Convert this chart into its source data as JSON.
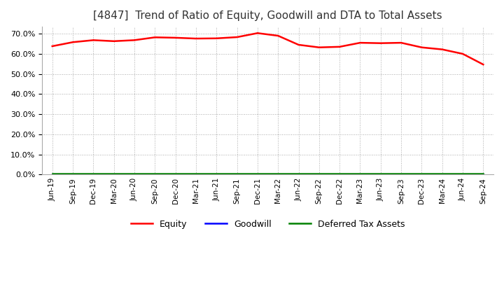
{
  "title": "[4847]  Trend of Ratio of Equity, Goodwill and DTA to Total Assets",
  "title_fontsize": 11,
  "background_color": "#ffffff",
  "plot_bg_color": "#ffffff",
  "grid_color": "#aaaaaa",
  "grid_style": ":",
  "ylim": [
    0.0,
    0.735
  ],
  "yticks": [
    0.0,
    0.1,
    0.2,
    0.3,
    0.4,
    0.5,
    0.6,
    0.7
  ],
  "x_labels": [
    "Jun-19",
    "Sep-19",
    "Dec-19",
    "Mar-20",
    "Jun-20",
    "Sep-20",
    "Dec-20",
    "Mar-21",
    "Jun-21",
    "Sep-21",
    "Dec-21",
    "Mar-22",
    "Jun-22",
    "Sep-22",
    "Dec-22",
    "Mar-23",
    "Jun-23",
    "Sep-23",
    "Dec-23",
    "Mar-24",
    "Jun-24",
    "Sep-24"
  ],
  "equity": [
    0.638,
    0.658,
    0.668,
    0.663,
    0.668,
    0.682,
    0.68,
    0.676,
    0.677,
    0.683,
    0.703,
    0.69,
    0.645,
    0.632,
    0.635,
    0.655,
    0.653,
    0.655,
    0.632,
    0.622,
    0.6,
    0.547
  ],
  "goodwill": [
    0.0,
    0.0,
    0.0,
    0.0,
    0.0,
    0.0,
    0.0,
    0.0,
    0.0,
    0.0,
    0.0,
    0.0,
    0.0,
    0.0,
    0.0,
    0.0,
    0.0,
    0.0,
    0.0,
    0.0,
    0.0,
    0.0
  ],
  "dta": [
    0.003,
    0.003,
    0.003,
    0.003,
    0.003,
    0.003,
    0.003,
    0.003,
    0.003,
    0.003,
    0.003,
    0.003,
    0.003,
    0.003,
    0.003,
    0.003,
    0.003,
    0.003,
    0.003,
    0.003,
    0.003,
    0.003
  ],
  "equity_color": "#ff0000",
  "goodwill_color": "#0000ff",
  "dta_color": "#008000",
  "line_width": 1.8,
  "legend_labels": [
    "Equity",
    "Goodwill",
    "Deferred Tax Assets"
  ]
}
